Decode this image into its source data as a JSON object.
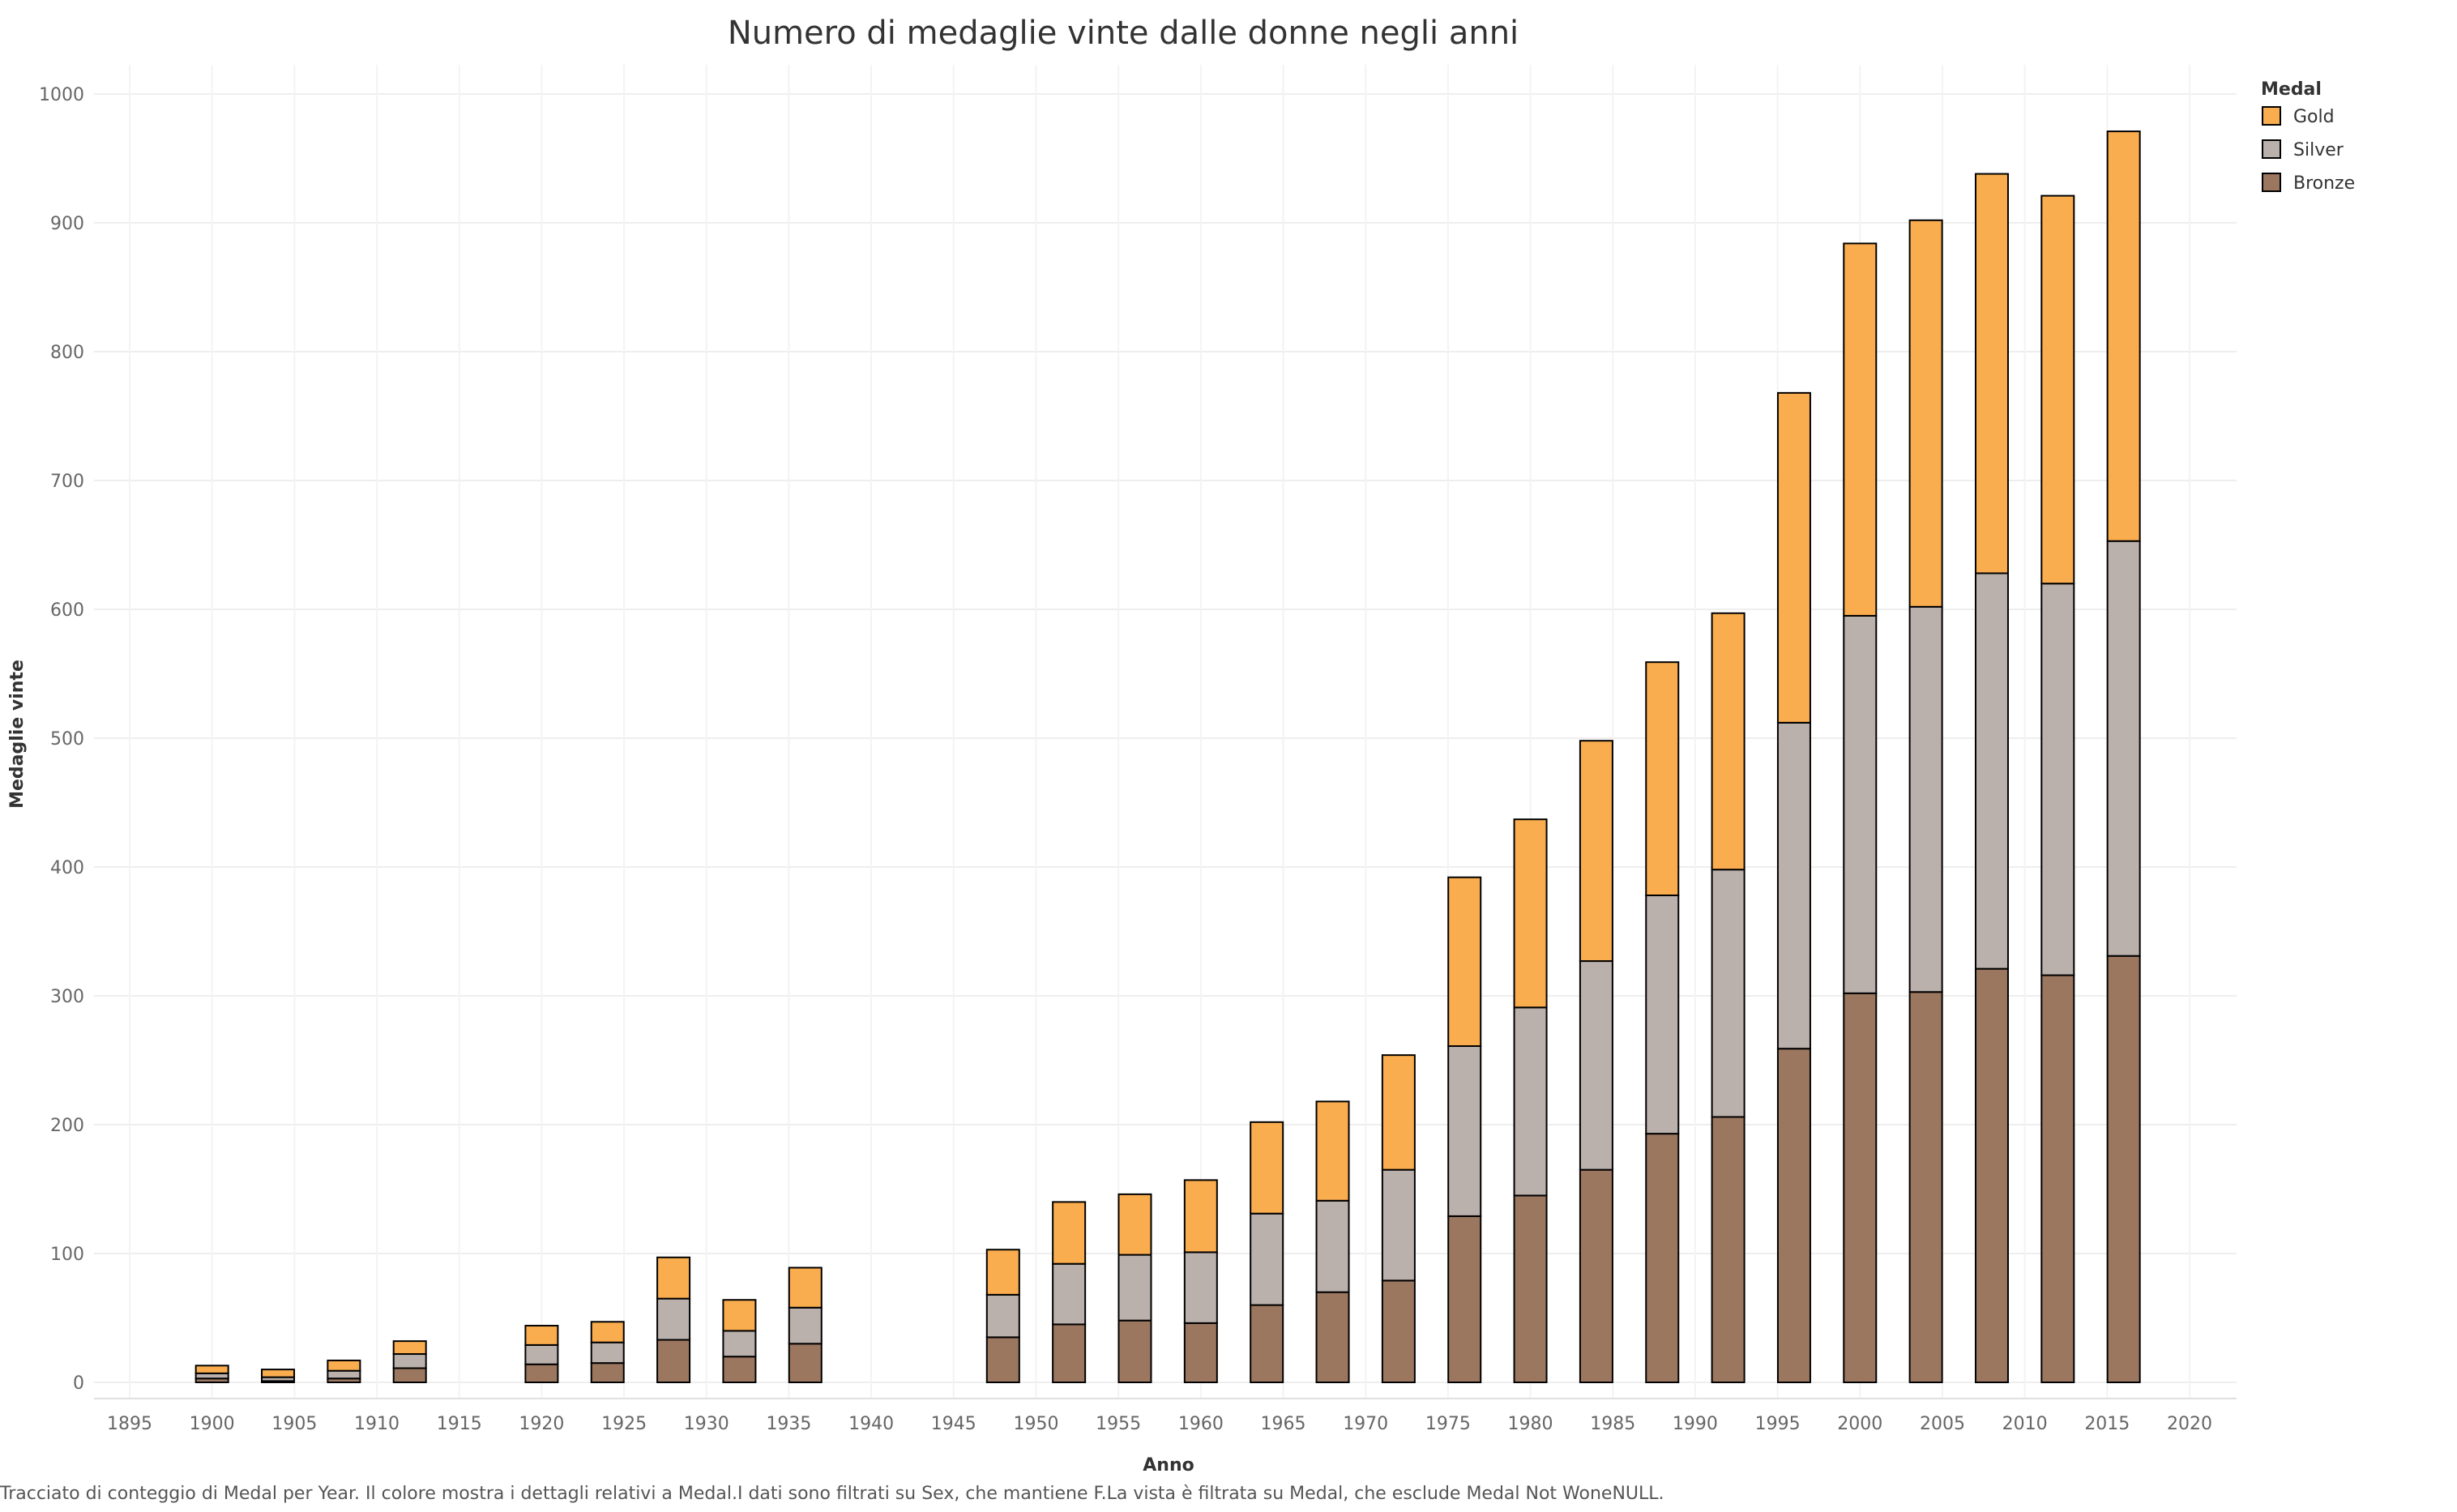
{
  "chart_data": {
    "type": "bar",
    "stacked": true,
    "title": "Numero di medaglie vinte dalle donne negli anni",
    "xlabel": "Anno",
    "ylabel": "Medaglie vinte",
    "x": [
      1900,
      1904,
      1908,
      1912,
      1920,
      1924,
      1928,
      1932,
      1936,
      1948,
      1952,
      1956,
      1960,
      1964,
      1968,
      1972,
      1976,
      1980,
      1984,
      1988,
      1992,
      1996,
      2000,
      2004,
      2008,
      2012,
      2016
    ],
    "series": [
      {
        "name": "Bronze",
        "color": "#9c7760",
        "values": [
          3,
          1,
          3,
          11,
          14,
          15,
          33,
          20,
          30,
          35,
          45,
          48,
          46,
          60,
          70,
          79,
          129,
          145,
          165,
          193,
          206,
          259,
          302,
          303,
          321,
          316,
          331
        ]
      },
      {
        "name": "Silver",
        "color": "#bab0ac",
        "values": [
          4,
          3,
          6,
          11,
          15,
          16,
          32,
          20,
          28,
          33,
          47,
          51,
          55,
          71,
          71,
          86,
          132,
          146,
          162,
          185,
          192,
          253,
          293,
          299,
          307,
          304,
          322
        ]
      },
      {
        "name": "Gold",
        "color": "#f9ad4f",
        "values": [
          6,
          6,
          8,
          10,
          15,
          16,
          32,
          24,
          31,
          35,
          48,
          47,
          56,
          71,
          77,
          89,
          131,
          146,
          171,
          181,
          199,
          256,
          289,
          300,
          310,
          301,
          318
        ]
      }
    ],
    "ylim": [
      0,
      1000
    ],
    "yticks": [
      0,
      100,
      200,
      300,
      400,
      500,
      600,
      700,
      800,
      900,
      1000
    ],
    "xlim": [
      1895,
      2020
    ],
    "xticks": [
      1895,
      1900,
      1905,
      1910,
      1915,
      1920,
      1925,
      1930,
      1935,
      1940,
      1945,
      1950,
      1955,
      1960,
      1965,
      1970,
      1975,
      1980,
      1985,
      1990,
      1995,
      2000,
      2005,
      2010,
      2015,
      2020
    ],
    "grid": true,
    "legend_title": "Medal",
    "legend_order": [
      "Gold",
      "Silver",
      "Bronze"
    ],
    "legend_position": "top-right"
  },
  "caption": "Tracciato di conteggio di Medal per Year. Il colore mostra i dettagli relativi a Medal.I dati sono filtrati su Sex, che mantiene F.La vista è filtrata su Medal, che esclude Medal Not WoneNULL."
}
